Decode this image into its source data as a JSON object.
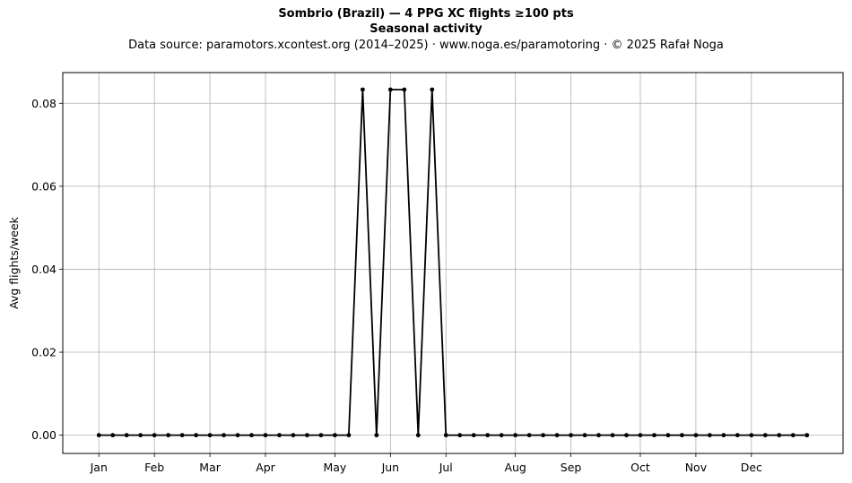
{
  "title_line1": "Sombrio (Brazil)  —  4 PPG XC flights ≥100 pts",
  "title_line2": "Seasonal activity",
  "title_line3": "Data source: paramotors.xcontest.org (2014–2025)  ·  www.noga.es/paramotoring  ·  © 2025 Rafał Noga",
  "chart_data": {
    "type": "line",
    "title": "Sombrio (Brazil)  —  4 PPG XC flights ≥100 pts",
    "subtitle": "Seasonal activity",
    "xlabel": "",
    "ylabel": "Avg flights/week",
    "x_unit": "week of year",
    "xlim": [
      -2.6,
      53.6
    ],
    "ylim": [
      -0.0044,
      0.0874
    ],
    "grid": true,
    "line_color": "#000000",
    "yticks": [
      0.0,
      0.02,
      0.04,
      0.06,
      0.08
    ],
    "ytick_labels": [
      "0.00",
      "0.02",
      "0.04",
      "0.06",
      "0.08"
    ],
    "month_ticks": [
      {
        "label": "Jan",
        "week": 0
      },
      {
        "label": "Feb",
        "week": 4
      },
      {
        "label": "Mar",
        "week": 8
      },
      {
        "label": "Apr",
        "week": 12
      },
      {
        "label": "May",
        "week": 17
      },
      {
        "label": "Jun",
        "week": 21
      },
      {
        "label": "Jul",
        "week": 25
      },
      {
        "label": "Aug",
        "week": 30
      },
      {
        "label": "Sep",
        "week": 34
      },
      {
        "label": "Oct",
        "week": 39
      },
      {
        "label": "Nov",
        "week": 43
      },
      {
        "label": "Dec",
        "week": 47
      }
    ],
    "x": [
      0,
      1,
      2,
      3,
      4,
      5,
      6,
      7,
      8,
      9,
      10,
      11,
      12,
      13,
      14,
      15,
      16,
      17,
      18,
      19,
      20,
      21,
      22,
      23,
      24,
      25,
      26,
      27,
      28,
      29,
      30,
      31,
      32,
      33,
      34,
      35,
      36,
      37,
      38,
      39,
      40,
      41,
      42,
      43,
      44,
      45,
      46,
      47,
      48,
      49,
      50,
      51
    ],
    "values": [
      0,
      0,
      0,
      0,
      0,
      0,
      0,
      0,
      0,
      0,
      0,
      0,
      0,
      0,
      0,
      0,
      0,
      0,
      0,
      0.0833,
      0,
      0.0833,
      0.0833,
      0,
      0.0833,
      0,
      0,
      0,
      0,
      0,
      0,
      0,
      0,
      0,
      0,
      0,
      0,
      0,
      0,
      0,
      0,
      0,
      0,
      0,
      0,
      0,
      0,
      0,
      0,
      0,
      0,
      0
    ]
  }
}
